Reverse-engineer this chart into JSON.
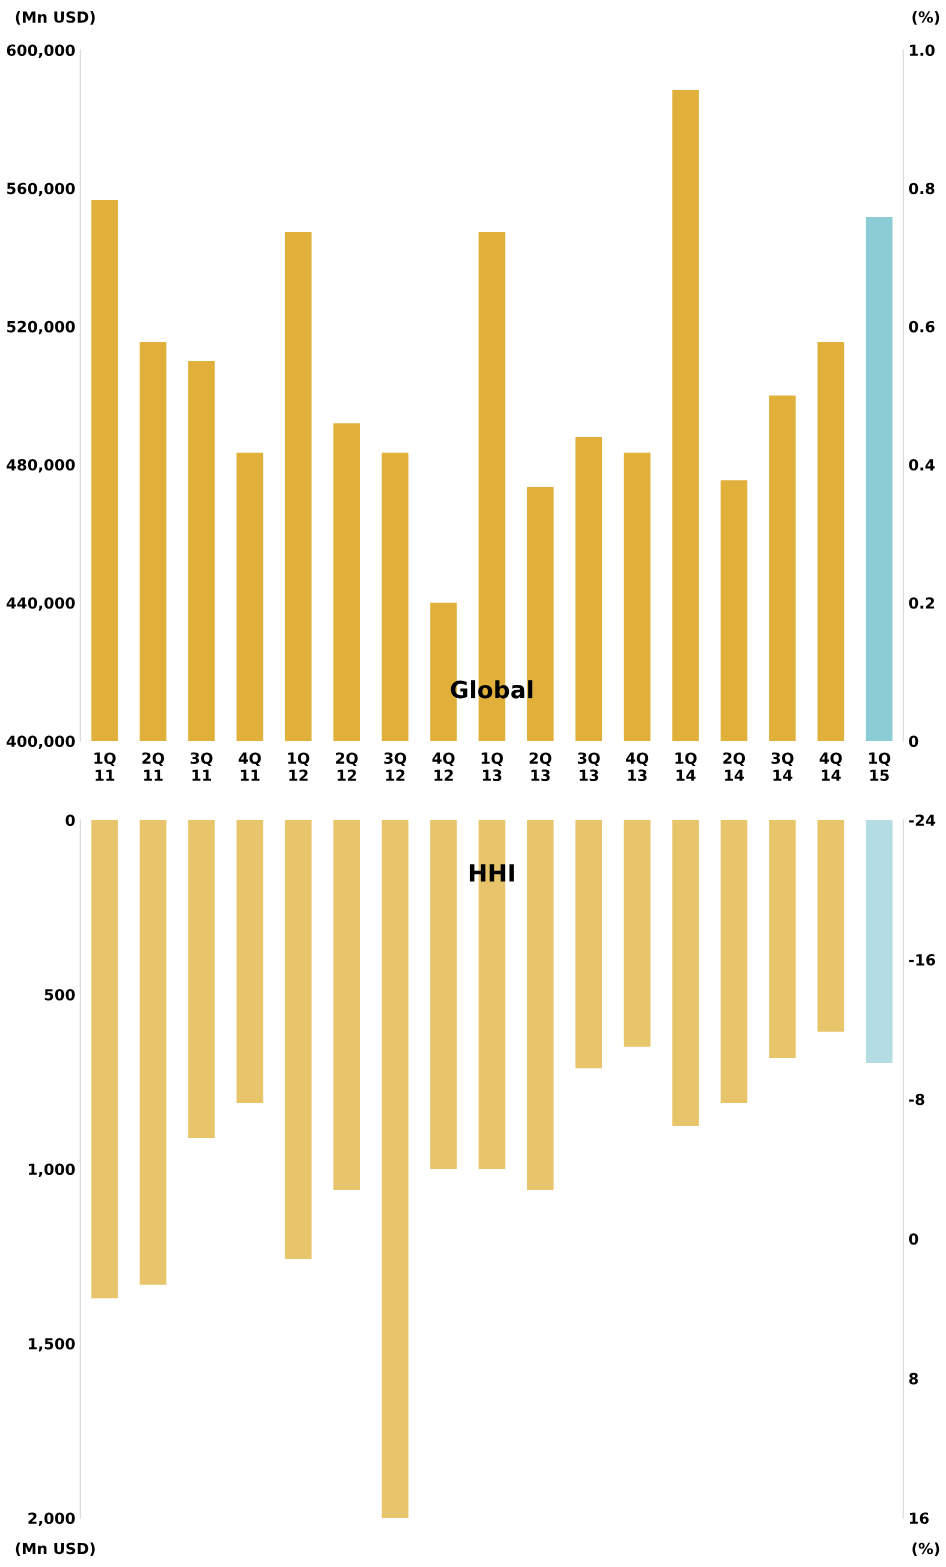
{
  "chart_data": [
    {
      "type": "bar",
      "title": "Global",
      "ylabel": "(Mn USD)",
      "y2label": "(%)",
      "categories": [
        "1Q\n11",
        "2Q\n11",
        "3Q\n11",
        "4Q\n11",
        "1Q\n12",
        "2Q\n12",
        "3Q\n12",
        "4Q\n12",
        "1Q\n13",
        "2Q\n13",
        "3Q\n13",
        "4Q\n13",
        "1Q\n14",
        "2Q\n14",
        "3Q\n14",
        "4Q\n14",
        "1Q\n15"
      ],
      "values": [
        556600,
        515500,
        510000,
        483400,
        547300,
        492000,
        483400,
        440000,
        547300,
        473500,
        488000,
        483400,
        588400,
        475500,
        500000,
        515500,
        551700
      ],
      "colors": [
        "#e1b03a",
        "#e1b03a",
        "#e1b03a",
        "#e1b03a",
        "#e1b03a",
        "#e1b03a",
        "#e1b03a",
        "#e1b03a",
        "#e1b03a",
        "#e1b03a",
        "#e1b03a",
        "#e1b03a",
        "#e1b03a",
        "#e1b03a",
        "#e1b03a",
        "#e1b03a",
        "#8ccdd5"
      ],
      "ylim": [
        400000,
        600000
      ],
      "yticks": [
        {
          "value": 400000,
          "label": "400,000"
        },
        {
          "value": 440000,
          "label": "440,000"
        },
        {
          "value": 480000,
          "label": "480,000"
        },
        {
          "value": 520000,
          "label": "520,000"
        },
        {
          "value": 560000,
          "label": "560,000"
        },
        {
          "value": 600000,
          "label": "600,000"
        }
      ],
      "y2lim": [
        0,
        1.0
      ],
      "y2ticks": [
        0,
        0.2,
        0.4,
        0.6,
        0.8,
        {
          "value": 1.0,
          "label": "1.0"
        }
      ],
      "grid": false
    },
    {
      "type": "bar",
      "title": "HHI",
      "ylabel": "(Mn USD)",
      "y2label": "(%)",
      "categories": [
        null,
        null,
        null,
        null,
        null,
        null,
        null,
        null,
        null,
        null,
        null,
        null,
        null,
        null,
        null,
        null,
        null
      ],
      "values": [
        1370,
        1332,
        911,
        811,
        1258,
        1060,
        2000,
        1000,
        1000,
        1060,
        711,
        650,
        877,
        811,
        682,
        607,
        696
      ],
      "colors": [
        "#e8c46a",
        "#e8c46a",
        "#e8c46a",
        "#e8c46a",
        "#e8c46a",
        "#e8c46a",
        "#e8c46a",
        "#e8c46a",
        "#e8c46a",
        "#e8c46a",
        "#e8c46a",
        "#e8c46a",
        "#e8c46a",
        "#e8c46a",
        "#e8c46a",
        "#e8c46a",
        "#b3dde2"
      ],
      "ylim": [
        2000,
        0
      ],
      "yticks": [
        0,
        500,
        {
          "value": 1000,
          "label": "1,000"
        },
        {
          "value": 1500,
          "label": "1,500"
        },
        {
          "value": 2000,
          "label": "2,000"
        }
      ],
      "y2lim": [
        16,
        -24
      ],
      "y2ticks": [
        -24,
        -16,
        -8,
        0,
        8,
        16
      ],
      "tick_labels": "y",
      "grid": false
    }
  ]
}
